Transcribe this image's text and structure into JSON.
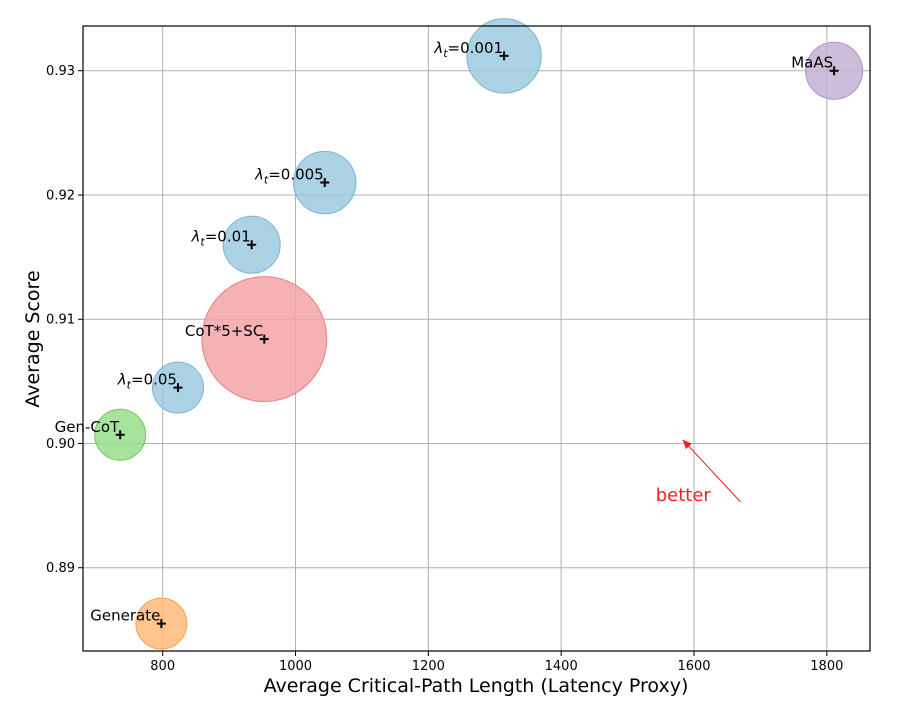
{
  "chart_data": {
    "type": "scatter",
    "xlabel": "Average Critical-Path Length (Latency Proxy)",
    "ylabel": "Average Score",
    "xlim": [
      680,
      1865
    ],
    "ylim": [
      0.8833,
      0.9336
    ],
    "xticks": [
      800,
      1000,
      1200,
      1400,
      1600,
      1800
    ],
    "yticks": [
      0.89,
      0.9,
      0.91,
      0.92,
      0.93
    ],
    "ytick_labels": [
      "0.89",
      "0.90",
      "0.91",
      "0.92",
      "0.93"
    ],
    "grid": true,
    "points": [
      {
        "label": "Generate",
        "x": 798,
        "y": 0.8855,
        "bubble_size": 0.8,
        "color": "#ffbb78",
        "edge": "#f5a055"
      },
      {
        "label": "Gen-CoT",
        "x": 736,
        "y": 0.9007,
        "bubble_size": 0.8,
        "color": "#98df8a",
        "edge": "#72c862"
      },
      {
        "label": "CoT*5+SC",
        "x": 953,
        "y": 0.9084,
        "bubble_size": 4.8,
        "color": "#f4a3a8",
        "edge": "#e87f86"
      },
      {
        "label": "λt=0.05",
        "label_base": "λ",
        "label_sub": "t",
        "label_rest": "=0.05",
        "x": 823,
        "y": 0.9045,
        "bubble_size": 0.8,
        "color": "#9ecae1",
        "edge": "#7fb3d5"
      },
      {
        "label": "λt=0.01",
        "label_base": "λ",
        "label_sub": "t",
        "label_rest": "=0.01",
        "x": 934,
        "y": 0.916,
        "bubble_size": 1.0,
        "color": "#9ecae1",
        "edge": "#7fb3d5"
      },
      {
        "label": "λt=0.005",
        "label_base": "λ",
        "label_sub": "t",
        "label_rest": "=0.005",
        "x": 1044,
        "y": 0.921,
        "bubble_size": 1.2,
        "color": "#9ecae1",
        "edge": "#7fb3d5"
      },
      {
        "label": "λt=0.001",
        "label_base": "λ",
        "label_sub": "t",
        "label_rest": "=0.001",
        "x": 1314,
        "y": 0.9312,
        "bubble_size": 1.7,
        "color": "#9ecae1",
        "edge": "#7fb3d5"
      },
      {
        "label": "MaAS",
        "x": 1811,
        "y": 0.93,
        "bubble_size": 1.0,
        "color": "#c5b0d5",
        "edge": "#ad94c4"
      }
    ],
    "annotation": {
      "text": "better",
      "color": "#ee2222",
      "arrow_from": [
        1670,
        0.8953
      ],
      "arrow_to": [
        1583,
        0.9003
      ]
    }
  }
}
